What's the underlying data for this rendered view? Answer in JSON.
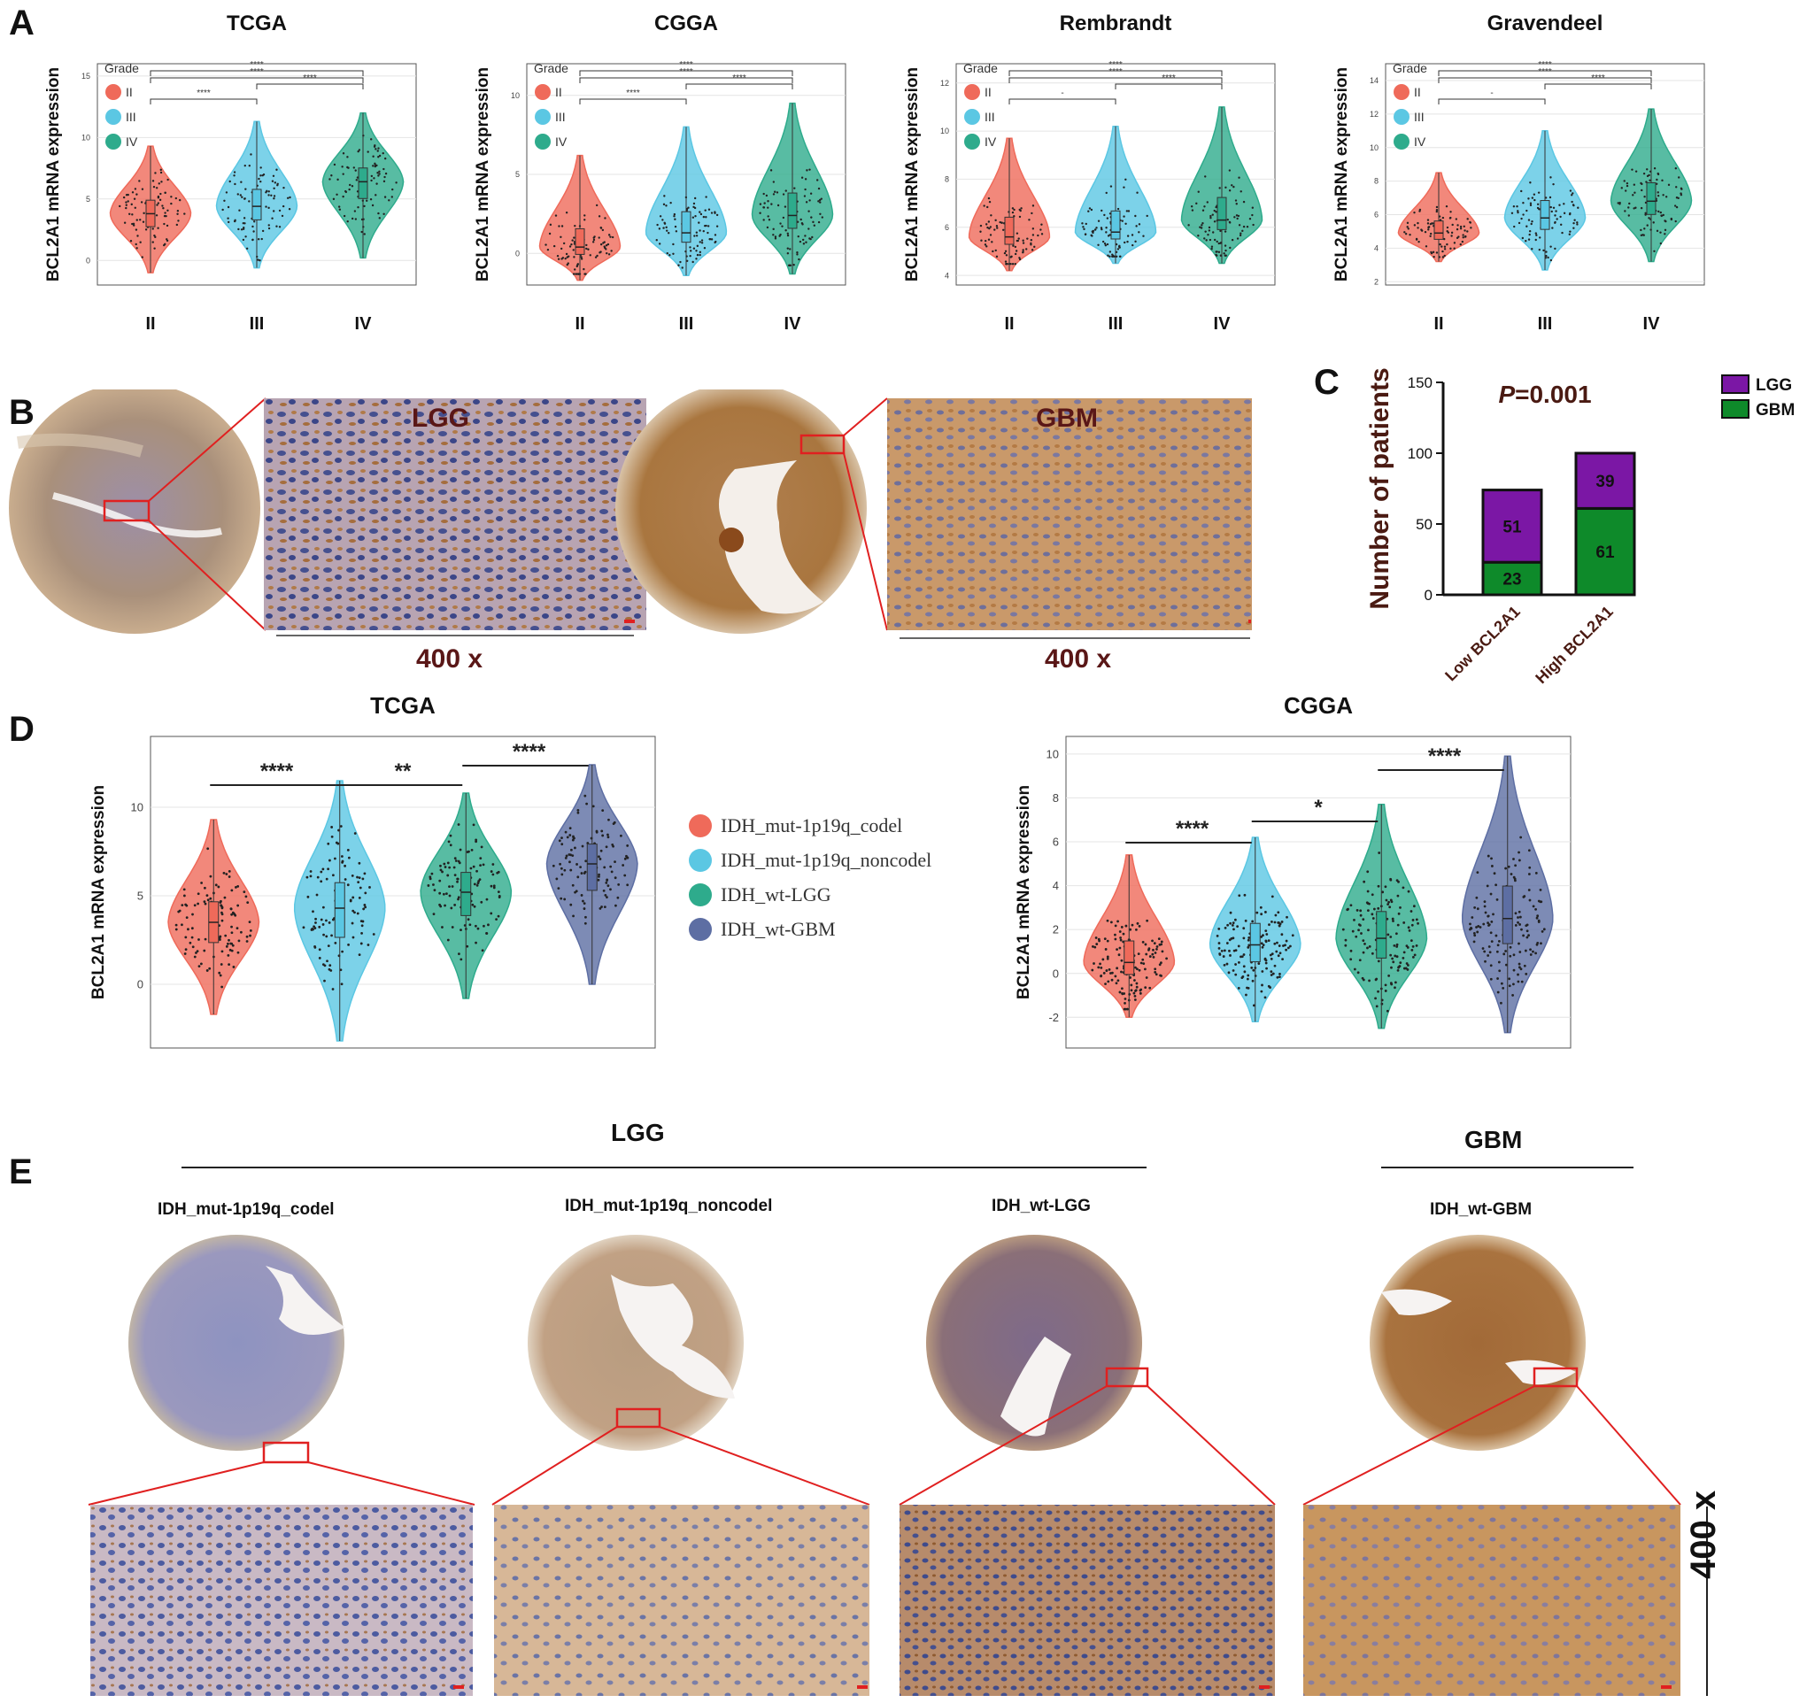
{
  "panel_letters": [
    "A",
    "B",
    "C",
    "D",
    "E"
  ],
  "colors": {
    "red": "#ef6a5a",
    "blue": "#5bc7e3",
    "teal": "#2eab8c",
    "navy": "#5d6ea3",
    "purple": "#7b17a5",
    "green": "#0e8a2a",
    "tissue_brown": "#b98a5c",
    "tissue_blue": "#7d86b5"
  },
  "panel_a": {
    "ylabel": "BCL2A1 mRNA expression",
    "legend_title": "Grade",
    "legend": [
      "II",
      "III",
      "IV"
    ],
    "categories": [
      "II",
      "III",
      "IV"
    ]
  },
  "panel_b": {
    "lgg_label": "LGG",
    "gbm_label": "GBM",
    "magnification": "400 x"
  },
  "panel_d": {
    "ylabel": "BCL2A1 mRNA expression",
    "legend": [
      "IDH_mut-1p19q_codel",
      "IDH_mut-1p19q_noncodel",
      "IDH_wt-LGG",
      "IDH_wt-GBM"
    ]
  },
  "panel_e": {
    "lgg_label": "LGG",
    "gbm_label": "GBM",
    "magnification": "400 x",
    "cores": [
      "IDH_mut-1p19q_codel",
      "IDH_mut-1p19q_noncodel",
      "IDH_wt-LGG",
      "IDH_wt-GBM"
    ]
  },
  "chart_data": [
    {
      "type": "violin",
      "title": "TCGA",
      "ylabel": "BCL2A1 mRNA expression",
      "categories": [
        "II",
        "III",
        "IV"
      ],
      "yticks": [
        0,
        5,
        10,
        15
      ],
      "ylim": [
        -2,
        16
      ],
      "medians": [
        3.8,
        4.4,
        6.4
      ],
      "range": [
        [
          -1.0,
          9.3
        ],
        [
          -0.6,
          11.3
        ],
        [
          0.2,
          12.0
        ]
      ],
      "comparisons": [
        {
          "from": "II",
          "to": "III",
          "label": "****"
        },
        {
          "from": "III",
          "to": "IV",
          "label": "****"
        },
        {
          "from": "II",
          "to": "IV",
          "label": "****"
        },
        {
          "from": "II",
          "to": "IV",
          "label": "****"
        }
      ]
    },
    {
      "type": "violin",
      "title": "CGGA",
      "ylabel": "BCL2A1 mRNA expression",
      "categories": [
        "II",
        "III",
        "IV"
      ],
      "yticks": [
        0,
        5,
        10
      ],
      "ylim": [
        -2,
        12
      ],
      "medians": [
        0.4,
        1.3,
        2.4
      ],
      "range": [
        [
          -1.7,
          6.2
        ],
        [
          -1.4,
          8.0
        ],
        [
          -1.3,
          9.5
        ]
      ],
      "comparisons": [
        {
          "from": "II",
          "to": "III",
          "label": "****"
        },
        {
          "from": "III",
          "to": "IV",
          "label": "****"
        },
        {
          "from": "II",
          "to": "IV",
          "label": "****"
        },
        {
          "from": "II",
          "to": "IV",
          "label": "****"
        }
      ]
    },
    {
      "type": "violin",
      "title": "Rembrandt",
      "ylabel": "BCL2A1 mRNA expression",
      "categories": [
        "II",
        "III",
        "IV"
      ],
      "yticks": [
        4,
        6,
        8,
        10,
        12
      ],
      "ylim": [
        3.6,
        12.8
      ],
      "medians": [
        5.6,
        5.8,
        6.3
      ],
      "range": [
        [
          4.2,
          9.7
        ],
        [
          4.5,
          10.2
        ],
        [
          4.5,
          11.0
        ]
      ],
      "comparisons": [
        {
          "from": "II",
          "to": "III",
          "label": "-"
        },
        {
          "from": "III",
          "to": "IV",
          "label": "****"
        },
        {
          "from": "II",
          "to": "IV",
          "label": "****"
        },
        {
          "from": "II",
          "to": "IV",
          "label": "****"
        }
      ]
    },
    {
      "type": "violin",
      "title": "Gravendeel",
      "ylabel": "BCL2A1 mRNA expression",
      "categories": [
        "II",
        "III",
        "IV"
      ],
      "yticks": [
        2,
        4,
        6,
        8,
        10,
        12,
        14
      ],
      "ylim": [
        1.8,
        15
      ],
      "medians": [
        4.9,
        5.8,
        6.8
      ],
      "range": [
        [
          3.2,
          8.5
        ],
        [
          2.7,
          11.0
        ],
        [
          3.2,
          12.3
        ]
      ],
      "comparisons": [
        {
          "from": "II",
          "to": "III",
          "label": "-"
        },
        {
          "from": "III",
          "to": "IV",
          "label": "****"
        },
        {
          "from": "II",
          "to": "IV",
          "label": "****"
        },
        {
          "from": "II",
          "to": "IV",
          "label": "****"
        }
      ]
    },
    {
      "type": "bar",
      "stacked": true,
      "title": "P=0.001",
      "ylabel": "Number of patients",
      "categories": [
        "Low BCL2A1",
        "High BCL2A1"
      ],
      "yticks": [
        0,
        50,
        100,
        150
      ],
      "ylim": [
        0,
        150
      ],
      "series": [
        {
          "name": "GBM",
          "values": [
            23,
            61
          ]
        },
        {
          "name": "LGG",
          "values": [
            51,
            39
          ]
        }
      ]
    },
    {
      "type": "violin",
      "title": "TCGA",
      "ylabel": "BCL2A1 mRNA expression",
      "categories": [
        "IDH_mut-1p19q_codel",
        "IDH_mut-1p19q_noncodel",
        "IDH_wt-LGG",
        "IDH_wt-GBM"
      ],
      "yticks": [
        0,
        5,
        10
      ],
      "ylim": [
        -3.6,
        14
      ],
      "medians": [
        3.5,
        4.3,
        5.2,
        6.8
      ],
      "range": [
        [
          -1.7,
          9.3
        ],
        [
          -3.2,
          11.5
        ],
        [
          -0.8,
          10.8
        ],
        [
          0,
          12.4
        ]
      ],
      "comparisons": [
        {
          "from": "IDH_mut-1p19q_codel",
          "to": "IDH_mut-1p19q_noncodel",
          "label": "****"
        },
        {
          "from": "IDH_mut-1p19q_noncodel",
          "to": "IDH_wt-LGG",
          "label": "**"
        },
        {
          "from": "IDH_wt-LGG",
          "to": "IDH_wt-GBM",
          "label": "****"
        }
      ]
    },
    {
      "type": "violin",
      "title": "CGGA",
      "ylabel": "BCL2A1 mRNA expression",
      "categories": [
        "IDH_mut-1p19q_codel",
        "IDH_mut-1p19q_noncodel",
        "IDH_wt-LGG",
        "IDH_wt-GBM"
      ],
      "yticks": [
        -2,
        0,
        2,
        4,
        6,
        8,
        10
      ],
      "ylim": [
        -3.4,
        10.8
      ],
      "medians": [
        0.5,
        1.3,
        1.6,
        2.5
      ],
      "range": [
        [
          -2.0,
          5.4
        ],
        [
          -2.2,
          6.2
        ],
        [
          -2.5,
          7.7
        ],
        [
          -2.7,
          9.9
        ]
      ],
      "comparisons": [
        {
          "from": "IDH_mut-1p19q_codel",
          "to": "IDH_mut-1p19q_noncodel",
          "label": "****"
        },
        {
          "from": "IDH_mut-1p19q_noncodel",
          "to": "IDH_wt-LGG",
          "label": "*"
        },
        {
          "from": "IDH_wt-LGG",
          "to": "IDH_wt-GBM",
          "label": "****"
        }
      ]
    }
  ]
}
